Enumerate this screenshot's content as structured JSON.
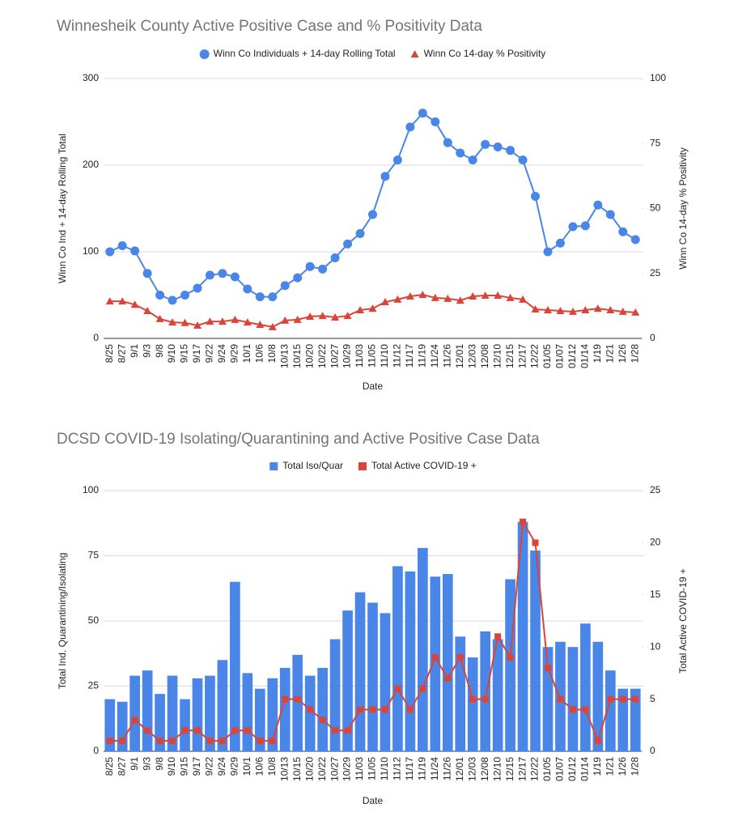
{
  "chart_data": [
    {
      "type": "line",
      "title": "Winnesheik County Active Positive Case and % Positivity Data",
      "categories": [
        "8/25",
        "8/27",
        "9/1",
        "9/3",
        "9/8",
        "9/10",
        "9/15",
        "9/17",
        "9/22",
        "9/24",
        "9/29",
        "10/1",
        "10/6",
        "10/8",
        "10/13",
        "10/15",
        "10/20",
        "10/22",
        "10/27",
        "10/29",
        "11/03",
        "11/05",
        "11/10",
        "11/12",
        "11/17",
        "11/19",
        "11/24",
        "11/26",
        "12/01",
        "12/03",
        "12/08",
        "12/10",
        "12/15",
        "12/17",
        "12/22",
        "01/05",
        "01/07",
        "01/12",
        "01/14",
        "1/19",
        "1/21",
        "1/26",
        "1/28"
      ],
      "x_label": "Date",
      "y_label": "Winn Co Ind + 14-day Rolling Total",
      "y2_label": "Winn Co 14-day % Positivity",
      "ylim": [
        0,
        300
      ],
      "yticks": [
        0,
        100,
        200,
        300
      ],
      "y2lim": [
        0,
        100
      ],
      "y2ticks": [
        0,
        25,
        50,
        75,
        100
      ],
      "grid": true,
      "legend": "top",
      "series": [
        {
          "name": "Winn Co Individuals + 14-day Rolling Total",
          "color": "#4a86e8",
          "marker": "circle",
          "values": [
            100,
            107,
            101,
            75,
            50,
            44,
            50,
            58,
            73,
            75,
            71,
            57,
            48,
            48,
            61,
            70,
            83,
            80,
            93,
            109,
            121,
            143,
            187,
            206,
            244,
            260,
            250,
            226,
            214,
            206,
            224,
            221,
            217,
            206,
            164,
            100,
            110,
            129,
            130,
            154,
            143,
            123,
            114
          ]
        },
        {
          "name": "Winn Co 14-day % Positivity",
          "color": "#db4437",
          "marker": "triangle",
          "axis": "y2",
          "values": [
            14.3,
            14.3,
            13,
            10.6,
            7.5,
            6.2,
            6,
            5,
            6.5,
            6.5,
            7.2,
            6.2,
            5.3,
            4.4,
            6.9,
            7.2,
            8.4,
            8.7,
            8.1,
            8.7,
            10.9,
            11.5,
            14,
            15,
            16.2,
            16.8,
            15.6,
            15.3,
            14.6,
            16.2,
            16.5,
            16.5,
            15.6,
            15,
            11.2,
            10.9,
            10.6,
            10.3,
            10.9,
            11.5,
            10.9,
            10.3,
            10
          ]
        }
      ]
    },
    {
      "type": "bar",
      "title": "DCSD COVID-19 Isolating/Quarantining and Active Positive Case Data",
      "categories": [
        "8/25",
        "8/27",
        "9/1",
        "9/3",
        "9/8",
        "9/10",
        "9/15",
        "9/17",
        "9/22",
        "9/24",
        "9/29",
        "10/1",
        "10/6",
        "10/8",
        "10/13",
        "10/15",
        "10/20",
        "10/22",
        "10/27",
        "10/29",
        "11/03",
        "11/05",
        "11/10",
        "11/12",
        "11/17",
        "11/19",
        "11/24",
        "11/26",
        "12/01",
        "12/03",
        "12/08",
        "12/10",
        "12/15",
        "12/17",
        "12/22",
        "01/05",
        "01/07",
        "01/12",
        "01/14",
        "1/19",
        "1/21",
        "1/26",
        "1/28"
      ],
      "x_label": "Date",
      "y_label": "Total Ind. Quarantining/Isolating",
      "y2_label": "Total Active COVID-19 +",
      "ylim": [
        0,
        100
      ],
      "yticks": [
        0,
        25,
        50,
        75,
        100
      ],
      "y2lim": [
        0,
        25
      ],
      "y2ticks": [
        0,
        5,
        10,
        15,
        20,
        25
      ],
      "grid": true,
      "legend": "top",
      "series": [
        {
          "name": "Total Iso/Quar",
          "color": "#4a86e8",
          "type": "bar",
          "values": [
            20,
            19,
            29,
            31,
            22,
            29,
            20,
            28,
            29,
            35,
            65,
            30,
            24,
            28,
            32,
            37,
            29,
            32,
            43,
            54,
            61,
            57,
            53,
            71,
            69,
            78,
            67,
            68,
            44,
            36,
            46,
            43,
            66,
            88,
            77,
            40,
            42,
            40,
            49,
            42,
            31,
            24,
            24
          ]
        },
        {
          "name": "Total Active COVID-19 +",
          "color": "#db4437",
          "type": "line",
          "marker": "square",
          "axis": "y2",
          "values": [
            1,
            1,
            3,
            2,
            1,
            1,
            2,
            2,
            1,
            1,
            2,
            2,
            1,
            1,
            5,
            5,
            4,
            3,
            2,
            2,
            4,
            4,
            4,
            6,
            4,
            6,
            9,
            7,
            9,
            5,
            5,
            11,
            9,
            22,
            20,
            8,
            5,
            4,
            4,
            1,
            5,
            5,
            5
          ]
        }
      ]
    }
  ]
}
